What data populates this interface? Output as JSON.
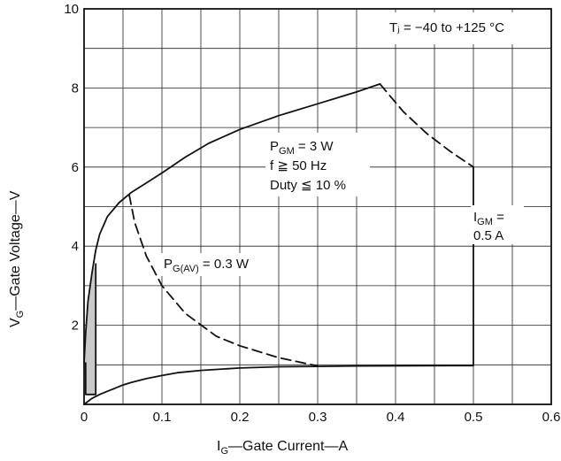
{
  "chart_data": {
    "type": "line",
    "xlabel": {
      "main": "I",
      "sub": "G",
      "rest": "—Gate Current—A"
    },
    "ylabel": {
      "main": "V",
      "sub": "G",
      "rest": "—Gate Voltage—V"
    },
    "xlim": [
      0,
      0.6
    ],
    "ylim": [
      0,
      10
    ],
    "x_major_ticks": [
      0,
      0.1,
      0.2,
      0.3,
      0.4,
      0.5,
      0.6
    ],
    "x_tick_labels": [
      "0",
      "0.1",
      "0.2",
      "0.3",
      "0.4",
      "0.5",
      "0.6"
    ],
    "y_major_ticks": [
      2,
      4,
      6,
      8,
      10
    ],
    "y_tick_labels": [
      "2",
      "4",
      "6",
      "8",
      "10"
    ],
    "grid": true,
    "grid_x_step": 0.05,
    "grid_y_step": 1,
    "annotations": {
      "tj": "Tⱼ = −40 to +125 °C",
      "pgm_main": "P",
      "pgm_sub": "GM",
      "pgm_rest": " = 3  W",
      "freq": "f ≧ 50 Hz",
      "duty": "Duty ≦ 10 %",
      "igm_main": "I",
      "igm_sub": "GM",
      "igm_rest": " =",
      "igm_value": "0.5 A",
      "pgav_main": "P",
      "pgav_sub": "G(AV)",
      "pgav_rest": " = 0.3  W"
    },
    "series": [
      {
        "style": "solid",
        "points": [
          [
            0.0,
            0.0
          ],
          [
            0.01,
            0.15
          ],
          [
            0.02,
            0.25
          ],
          [
            0.03,
            0.33
          ],
          [
            0.04,
            0.41
          ],
          [
            0.05,
            0.49
          ],
          [
            0.06,
            0.55
          ],
          [
            0.08,
            0.65
          ],
          [
            0.1,
            0.73
          ],
          [
            0.12,
            0.8
          ],
          [
            0.15,
            0.86
          ],
          [
            0.2,
            0.92
          ],
          [
            0.25,
            0.95
          ],
          [
            0.3,
            0.96
          ],
          [
            0.35,
            0.97
          ],
          [
            0.5,
            0.98
          ],
          [
            0.5,
            6.0
          ]
        ]
      },
      {
        "style": "solid",
        "points": [
          [
            0.0,
            1.05
          ],
          [
            0.002,
            1.8
          ],
          [
            0.005,
            2.6
          ],
          [
            0.01,
            3.3
          ],
          [
            0.015,
            3.9
          ],
          [
            0.02,
            4.3
          ],
          [
            0.03,
            4.75
          ],
          [
            0.045,
            5.1
          ],
          [
            0.06,
            5.35
          ],
          [
            0.08,
            5.6
          ],
          [
            0.1,
            5.85
          ],
          [
            0.13,
            6.25
          ],
          [
            0.16,
            6.6
          ],
          [
            0.2,
            6.95
          ],
          [
            0.25,
            7.3
          ],
          [
            0.3,
            7.6
          ],
          [
            0.35,
            7.9
          ],
          [
            0.38,
            8.1
          ]
        ]
      },
      {
        "style": "dashed",
        "points": [
          [
            0.38,
            8.1
          ],
          [
            0.41,
            7.4
          ],
          [
            0.44,
            6.85
          ],
          [
            0.47,
            6.4
          ],
          [
            0.5,
            6.0
          ]
        ]
      },
      {
        "style": "dashed",
        "points": [
          [
            0.058,
            5.3
          ],
          [
            0.065,
            4.6
          ],
          [
            0.08,
            3.75
          ],
          [
            0.1,
            3.0
          ],
          [
            0.13,
            2.3
          ],
          [
            0.17,
            1.72
          ],
          [
            0.2,
            1.48
          ],
          [
            0.25,
            1.18
          ],
          [
            0.3,
            0.97
          ]
        ]
      },
      {
        "style": "solid",
        "points": [
          [
            0.002,
            0.25
          ],
          [
            0.002,
            1.05
          ]
        ]
      },
      {
        "style": "solid",
        "points": [
          [
            0.003,
            0.25
          ],
          [
            0.015,
            0.25
          ],
          [
            0.015,
            3.55
          ]
        ]
      }
    ],
    "shaded_region": {
      "points": [
        [
          0.0,
          1.05
        ],
        [
          0.002,
          1.8
        ],
        [
          0.005,
          2.6
        ],
        [
          0.01,
          3.3
        ],
        [
          0.015,
          3.55
        ],
        [
          0.015,
          0.25
        ],
        [
          0.002,
          0.25
        ]
      ]
    }
  }
}
